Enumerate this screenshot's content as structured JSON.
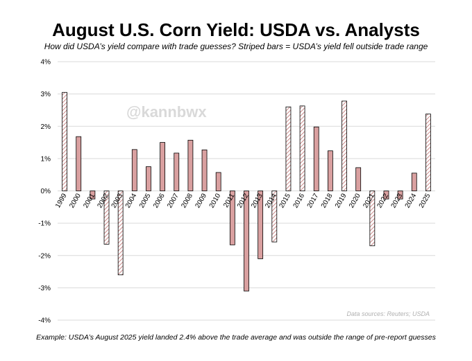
{
  "header": {
    "title": "August U.S. Corn Yield: USDA vs. Analysts",
    "subtitle": "How did USDA’s yield compare with trade guesses? Striped bars = USDA’s yield fell outside trade range"
  },
  "footnote": "Example: USDA’s August 2025 yield landed 2.4% above the trade average and was outside the range of pre-report guesses",
  "source": "Data sources: Reuters; USDA",
  "watermark": "@kannbwx",
  "colors": {
    "bar_fill": "#d9a0a0",
    "stripe": "#c98a8a",
    "bar_stroke": "#000000",
    "grid": "#d9d9d9"
  },
  "chart_data": {
    "type": "bar",
    "categories": [
      "1999",
      "2000",
      "2001",
      "2002",
      "2003",
      "2004",
      "2005",
      "2006",
      "2007",
      "2008",
      "2009",
      "2010",
      "2011",
      "2012",
      "2013",
      "2014",
      "2015",
      "2016",
      "2017",
      "2018",
      "2019",
      "2020",
      "2021",
      "2022",
      "2023",
      "2024",
      "2025"
    ],
    "values": [
      3.05,
      1.68,
      -0.25,
      -1.65,
      -2.6,
      1.28,
      0.75,
      1.5,
      1.17,
      1.57,
      1.27,
      0.57,
      -1.67,
      -3.1,
      -2.1,
      -1.58,
      2.6,
      2.63,
      1.98,
      1.24,
      2.78,
      0.72,
      -1.7,
      -0.25,
      -0.25,
      0.55,
      2.38
    ],
    "outside_trade_range": [
      true,
      false,
      false,
      true,
      true,
      false,
      false,
      false,
      false,
      false,
      false,
      false,
      false,
      false,
      false,
      true,
      true,
      true,
      false,
      false,
      true,
      false,
      true,
      false,
      false,
      false,
      true
    ],
    "yticks": [
      "4%",
      "3%",
      "2%",
      "1%",
      "0%",
      "-1%",
      "-2%",
      "-3%",
      "-4%"
    ],
    "ylim": [
      -4,
      4
    ],
    "grid": true
  }
}
